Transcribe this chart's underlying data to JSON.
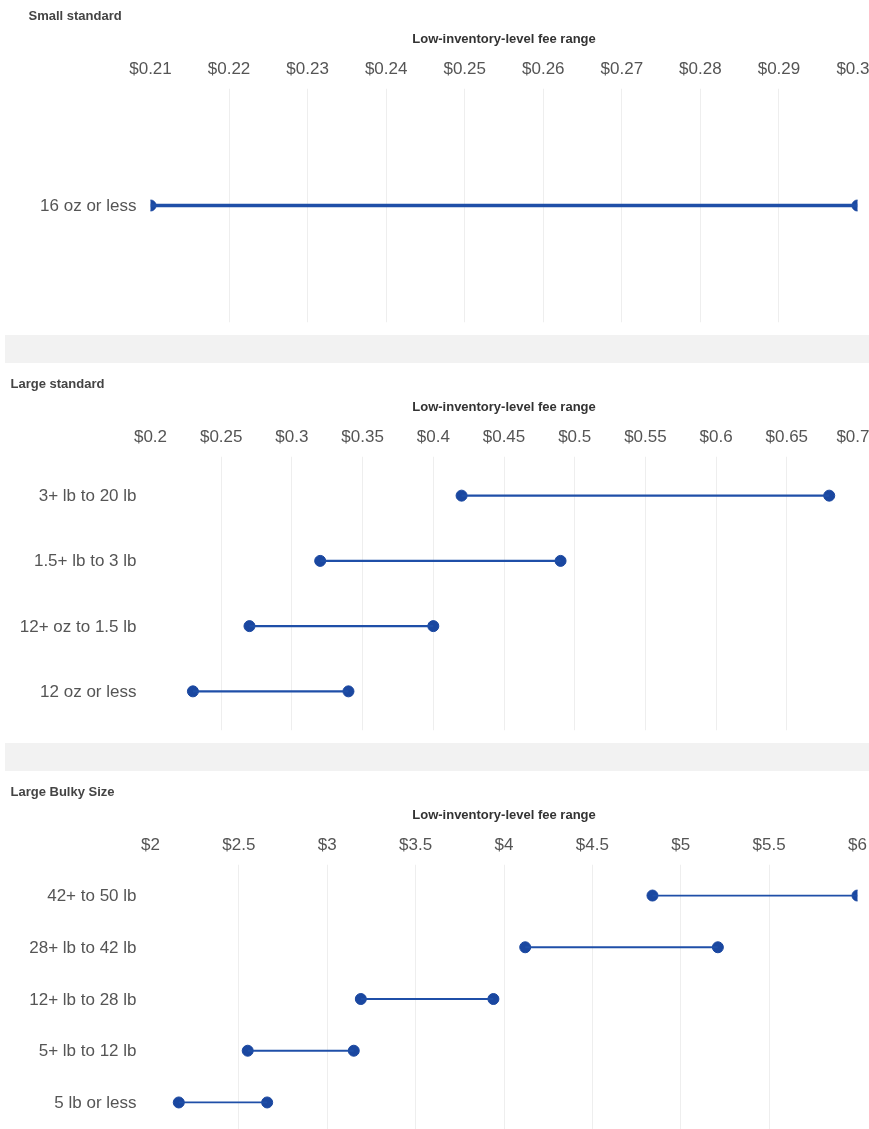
{
  "chart_data": [
    {
      "type": "bar",
      "orientation": "horizontal",
      "title": "Small standard",
      "xlabel": "Low-inventory-level fee range",
      "categories": [
        "16 oz or less"
      ],
      "marker": "circle",
      "xlim": [
        0.21,
        0.3
      ],
      "xticks": [
        {
          "value": 0.21,
          "label": "$0.21"
        },
        {
          "value": 0.22,
          "label": "$0.22"
        },
        {
          "value": 0.23,
          "label": "$0.23"
        },
        {
          "value": 0.24,
          "label": "$0.24"
        },
        {
          "value": 0.25,
          "label": "$0.25"
        },
        {
          "value": 0.26,
          "label": "$0.26"
        },
        {
          "value": 0.27,
          "label": "$0.27"
        },
        {
          "value": 0.28,
          "label": "$0.28"
        },
        {
          "value": 0.29,
          "label": "$0.29"
        },
        {
          "value": 0.3,
          "label": "$0.3"
        }
      ],
      "grid": "x",
      "series": [
        {
          "type": "bar",
          "color": "#1f4fa8",
          "base": [
            0.21
          ],
          "values": [
            0.09
          ]
        },
        {
          "type": "scatter",
          "color": "#1a47a0",
          "x": [
            "16 oz or less"
          ],
          "values": [
            0.21
          ]
        },
        {
          "type": "scatter",
          "color": "#1a47a0",
          "x": [
            "16 oz or less"
          ],
          "values": [
            0.3
          ]
        }
      ]
    },
    {
      "type": "bar",
      "orientation": "horizontal",
      "title": "Large standard",
      "xlabel": "Low-inventory-level fee range",
      "categories": [
        "3+ lb to 20 lb",
        "1.5+ lb to 3 lb",
        "12+ oz to 1.5 lb",
        "12 oz or less"
      ],
      "marker": "circle",
      "xlim": [
        0.2,
        0.7
      ],
      "xticks": [
        {
          "value": 0.2,
          "label": "$0.2"
        },
        {
          "value": 0.25,
          "label": "$0.25"
        },
        {
          "value": 0.3,
          "label": "$0.3"
        },
        {
          "value": 0.35,
          "label": "$0.35"
        },
        {
          "value": 0.4,
          "label": "$0.4"
        },
        {
          "value": 0.45,
          "label": "$0.45"
        },
        {
          "value": 0.5,
          "label": "$0.5"
        },
        {
          "value": 0.55,
          "label": "$0.55"
        },
        {
          "value": 0.6,
          "label": "$0.6"
        },
        {
          "value": 0.65,
          "label": "$0.65"
        },
        {
          "value": 0.7,
          "label": "$0.7"
        }
      ],
      "grid": "x",
      "series": [
        {
          "type": "bar",
          "color": "#1f4fa8",
          "base": [
            0.42,
            0.32,
            0.27,
            0.23
          ],
          "values": [
            0.26,
            0.17,
            0.13,
            0.11
          ]
        },
        {
          "type": "scatter",
          "color": "#1a47a0",
          "x": [
            "3+ lb to 20 lb",
            "1.5+ lb to 3 lb",
            "12+ oz to 1.5 lb",
            "12 oz or less"
          ],
          "values": [
            0.42,
            0.32,
            0.27,
            0.23
          ]
        },
        {
          "type": "scatter",
          "color": "#1a47a0",
          "x": [
            "3+ lb to 20 lb",
            "1.5+ lb to 3 lb",
            "12+ oz to 1.5 lb",
            "12 oz or less"
          ],
          "values": [
            0.68,
            0.49,
            0.4,
            0.34
          ]
        }
      ]
    },
    {
      "type": "bar",
      "orientation": "horizontal",
      "title": "Large Bulky Size",
      "xlabel": "Low-inventory-level fee range",
      "categories": [
        "42+ to 50 lb",
        "28+ lb to 42 lb",
        "12+ lb to 28 lb",
        "5+ lb to 12 lb",
        "5 lb or less"
      ],
      "marker": "circle",
      "xlim": [
        2,
        6
      ],
      "xticks": [
        {
          "value": 2,
          "label": "$2"
        },
        {
          "value": 2.5,
          "label": "$2.5"
        },
        {
          "value": 3,
          "label": "$3"
        },
        {
          "value": 3.5,
          "label": "$3.5"
        },
        {
          "value": 4,
          "label": "$4"
        },
        {
          "value": 4.5,
          "label": "$4.5"
        },
        {
          "value": 5,
          "label": "$5"
        },
        {
          "value": 5.5,
          "label": "$5.5"
        },
        {
          "value": 6,
          "label": "$6"
        }
      ],
      "grid": "x",
      "series": [
        {
          "type": "bar",
          "color": "#1f4fa8",
          "base": [
            4.84,
            4.12,
            3.19,
            2.55,
            2.16
          ],
          "values": [
            1.16,
            1.09,
            0.75,
            0.6,
            0.5
          ]
        },
        {
          "type": "scatter",
          "color": "#1a47a0",
          "x": [
            "42+ to 50 lb",
            "28+ lb to 42 lb",
            "12+ lb to 28 lb",
            "5+ lb to 12 lb",
            "5 lb or less"
          ],
          "values": [
            4.84,
            4.12,
            3.19,
            2.55,
            2.16
          ]
        },
        {
          "type": "scatter",
          "color": "#1a47a0",
          "x": [
            "42+ to 50 lb",
            "28+ lb to 42 lb",
            "12+ lb to 28 lb",
            "5+ lb to 12 lb",
            "5 lb or less"
          ],
          "values": [
            6.0,
            5.21,
            3.94,
            3.15,
            2.66
          ]
        }
      ]
    }
  ]
}
